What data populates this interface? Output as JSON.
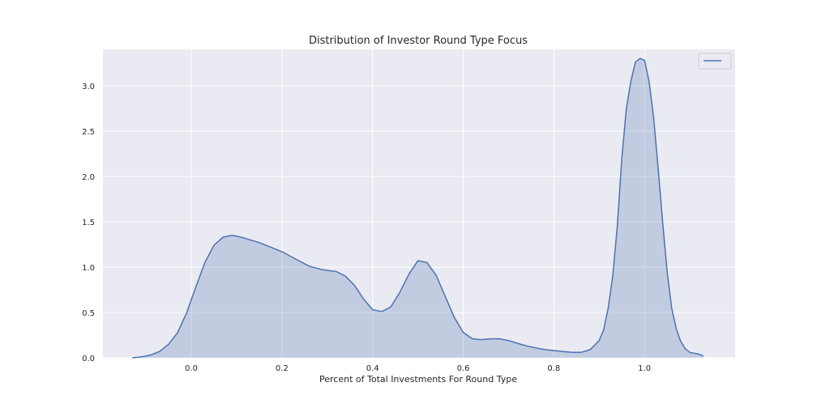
{
  "chart_data": {
    "type": "area",
    "title": "Distribution of Investor Round Type Focus",
    "xlabel": "Percent of Total Investments For Round Type",
    "ylabel": "",
    "xlim": [
      -0.195,
      1.2
    ],
    "ylim": [
      0,
      3.4
    ],
    "xticks": [
      0.0,
      0.2,
      0.4,
      0.6,
      0.8,
      1.0
    ],
    "xtick_labels": [
      "0.0",
      "0.2",
      "0.4",
      "0.6",
      "0.8",
      "1.0"
    ],
    "yticks": [
      0.0,
      0.5,
      1.0,
      1.5,
      2.0,
      2.5,
      3.0
    ],
    "ytick_labels": [
      "0.0",
      "0.5",
      "1.0",
      "1.5",
      "2.0",
      "2.5",
      "3.0"
    ],
    "grid": true,
    "legend": {
      "position": "top-right",
      "entries": [
        ""
      ]
    },
    "colors": {
      "line": "#4c72b0",
      "fill": "#4c72b0",
      "background": "#eaeaf2",
      "grid": "#ffffff"
    },
    "series": [
      {
        "x": [
          -0.13,
          -0.11,
          -0.09,
          -0.07,
          -0.05,
          -0.03,
          -0.01,
          0.01,
          0.03,
          0.05,
          0.07,
          0.09,
          0.11,
          0.13,
          0.15,
          0.17,
          0.2,
          0.23,
          0.26,
          0.29,
          0.32,
          0.34,
          0.36,
          0.38,
          0.4,
          0.42,
          0.44,
          0.46,
          0.48,
          0.5,
          0.52,
          0.54,
          0.56,
          0.58,
          0.6,
          0.62,
          0.64,
          0.66,
          0.68,
          0.7,
          0.72,
          0.74,
          0.76,
          0.78,
          0.8,
          0.82,
          0.84,
          0.86,
          0.88,
          0.9,
          0.91,
          0.92,
          0.93,
          0.94,
          0.95,
          0.96,
          0.97,
          0.98,
          0.99,
          1.0,
          1.01,
          1.02,
          1.03,
          1.04,
          1.05,
          1.06,
          1.07,
          1.08,
          1.09,
          1.1,
          1.12,
          1.13
        ],
        "y": [
          0.0,
          0.01,
          0.03,
          0.07,
          0.15,
          0.28,
          0.5,
          0.78,
          1.05,
          1.24,
          1.33,
          1.35,
          1.33,
          1.3,
          1.27,
          1.23,
          1.17,
          1.09,
          1.01,
          0.97,
          0.95,
          0.9,
          0.8,
          0.65,
          0.53,
          0.51,
          0.56,
          0.72,
          0.92,
          1.07,
          1.05,
          0.91,
          0.68,
          0.45,
          0.28,
          0.21,
          0.2,
          0.21,
          0.21,
          0.19,
          0.16,
          0.13,
          0.11,
          0.09,
          0.08,
          0.07,
          0.06,
          0.06,
          0.09,
          0.19,
          0.31,
          0.55,
          0.9,
          1.45,
          2.2,
          2.75,
          3.05,
          3.26,
          3.3,
          3.28,
          3.05,
          2.65,
          2.1,
          1.5,
          0.95,
          0.55,
          0.32,
          0.18,
          0.1,
          0.06,
          0.04,
          0.02
        ]
      }
    ]
  }
}
